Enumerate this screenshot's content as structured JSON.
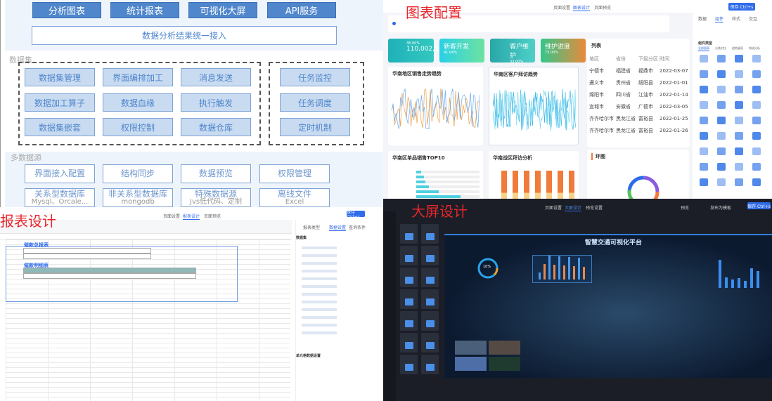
{
  "architecture": {
    "top_buttons": [
      "分析图表",
      "统计报表",
      "可视化大屏",
      "API服务"
    ],
    "unified_access": "数据分析结果统一接入",
    "dataset_label": "数据集",
    "dataset_cells": [
      "数据集管理",
      "界面编排加工",
      "消息发送",
      "数据加工算子",
      "数据血缘",
      "执行触发",
      "数据集嵌套",
      "权限控制",
      "数据仓库"
    ],
    "task_cells": [
      "任务监控",
      "任务调度",
      "定时机制"
    ],
    "multi_source_label": "多数据源",
    "source_row1": [
      "界面接入配置",
      "结构同步",
      "数据预览",
      "权限管理"
    ],
    "source_row2": [
      {
        "title": "关系型数据库",
        "sub": "Mysql、Orcale..."
      },
      {
        "title": "非关系型数据库",
        "sub": "mongodb"
      },
      {
        "title": "特殊数据源",
        "sub": "Jvs低代码、定制"
      },
      {
        "title": "离线文件",
        "sub": "Excel"
      }
    ]
  },
  "chart_config": {
    "overlay_label": "图表配置",
    "tabs": [
      "页面设置",
      "图表设计",
      "页面预览"
    ],
    "save_button": "保存 Ctrl+s",
    "right_tabs": [
      "数据",
      "组件",
      "样式",
      "交互"
    ],
    "component_type_label": "组件类型",
    "filters": [
      "全部图表",
      "分类对比",
      "趋势展现",
      "构成分析"
    ],
    "cards": [
      {
        "pct": "38.00%",
        "value": "110,002,1"
      },
      {
        "title": "新客开发",
        "pct": "41.04%"
      },
      {
        "title": "客户维护",
        "pct": "33.00%"
      },
      {
        "title": "维护进度",
        "pct": "73.00%"
      }
    ],
    "panels": [
      "华南地区销售走势趋势",
      "华南区客户拜访趋势",
      "华南区单品销售TOP10",
      "华南战区拜访分析",
      "环图"
    ],
    "list": {
      "title": "列表",
      "headers": [
        "地区",
        "省份",
        "下级分区",
        "时间"
      ],
      "rows": [
        [
          "宁德市",
          "福建省",
          "福鼎市",
          "2022-03-07"
        ],
        [
          "遵义市",
          "贵州省",
          "绥阳县",
          "2022-01-01"
        ],
        [
          "绵阳市",
          "四川省",
          "江油市",
          "2022-01-14"
        ],
        [
          "宣城市",
          "安徽省",
          "广德市",
          "2022-03-05"
        ],
        [
          "齐齐哈尔市",
          "黑龙江省",
          "富裕县",
          "2022-01-25"
        ],
        [
          "齐齐哈尔市",
          "黑龙江省",
          "富裕县",
          "2022-01-26"
        ]
      ]
    },
    "colors": {
      "accent": "#2f6bea"
    }
  },
  "report_design": {
    "overlay_label": "报表设计",
    "tabs": [
      "页面设置",
      "报表设计",
      "页面预览"
    ],
    "save_button": "保存 Ctrl+s",
    "right_tabs": [
      "报表类型",
      "数据设置",
      "查询条件"
    ],
    "dataset_label": "数据集",
    "sheet_title1": "催款总报表",
    "sheet_title2": "催款明细表",
    "cell_setting_label": "单元格数据设置"
  },
  "screen_design": {
    "overlay_label": "大屏设计",
    "tabs": [
      "页面设置",
      "大屏设计",
      "预览设置"
    ],
    "preview_button": "预览",
    "publish_button": "发布为模板",
    "save_button": "保存 Ctrl+s",
    "screen_title": "智慧交通可视化平台",
    "gauge_value": "10%"
  }
}
